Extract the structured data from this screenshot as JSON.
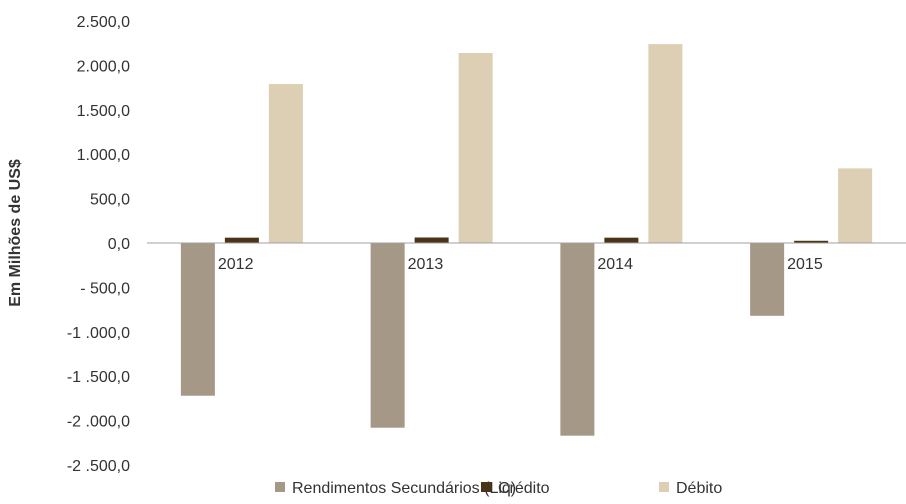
{
  "chart_data": {
    "type": "bar",
    "ylabel": "Em Milhões de US$",
    "xlabel": "",
    "categories": [
      "2012",
      "2013",
      "2014",
      "2015"
    ],
    "ylim": [
      -2500,
      2500
    ],
    "yticks": [
      2500,
      2000,
      1500,
      1000,
      500,
      0,
      -500,
      -1000,
      -1500,
      -2000,
      -2500
    ],
    "ytick_labels": [
      "2.500,0",
      "2.000,0",
      "1.500,0",
      "1.000,0",
      "500,0",
      "0,0",
      "- 500,0",
      "-1 .000,0",
      "-1 .500,0",
      "-2 .000,0",
      "-2 .500,0"
    ],
    "grid": false,
    "legend_position": "bottom",
    "series": [
      {
        "name": "Rendimentos Secundários (Liq)",
        "color": "#a69886",
        "values": [
          -1720,
          -2080,
          -2170,
          -820
        ]
      },
      {
        "name": "Crédito",
        "color": "#4a3418",
        "values": [
          60,
          62,
          60,
          25
        ]
      },
      {
        "name": "Débito",
        "color": "#dccfb3",
        "values": [
          1790,
          2140,
          2240,
          840
        ]
      }
    ]
  }
}
